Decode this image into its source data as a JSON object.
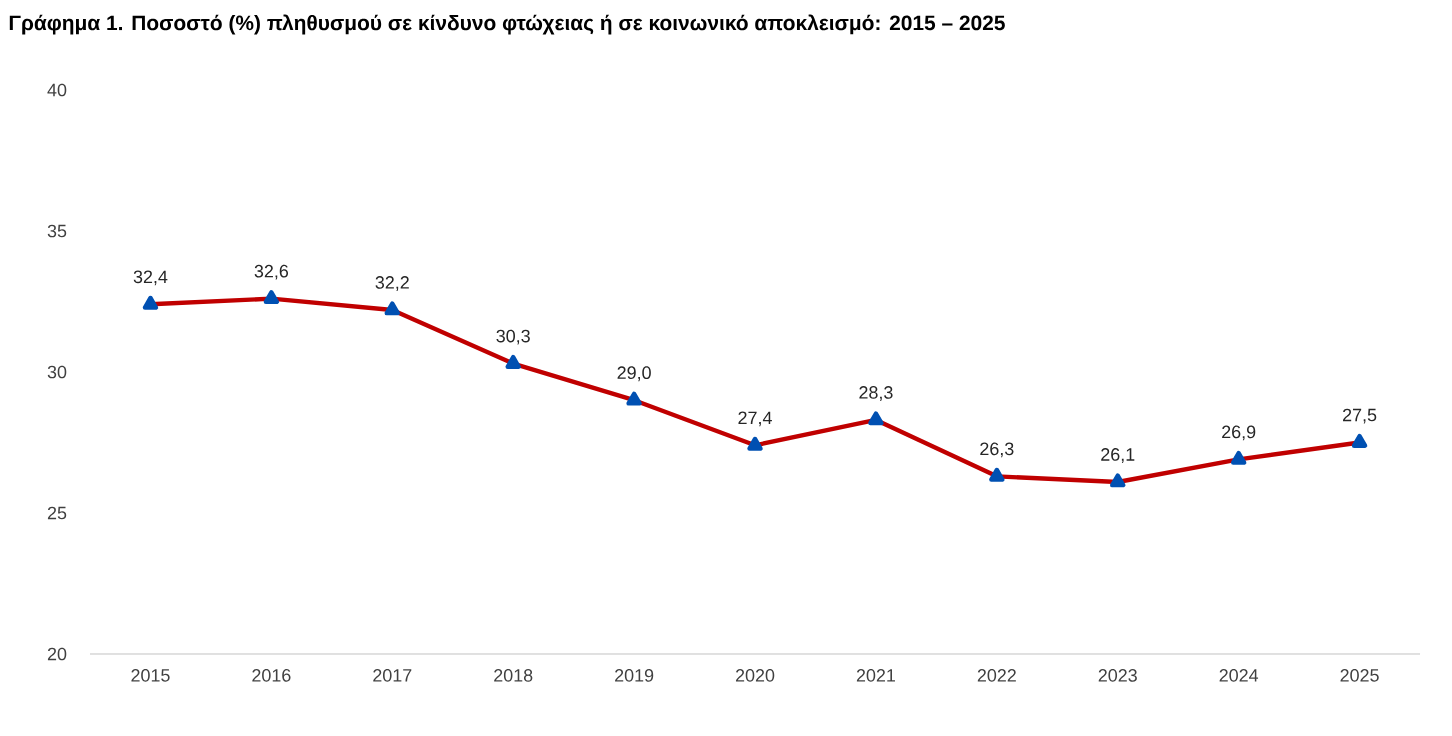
{
  "chart_data": {
    "type": "line",
    "title": "Γράφημα 1. Ποσοστό (%) πληθυσμού σε κίνδυνο φτώχειας ή σε κοινωνικό αποκλεισμό: 2015 – 2025",
    "categories": [
      "2015",
      "2016",
      "2017",
      "2018",
      "2019",
      "2020",
      "2021",
      "2022",
      "2023",
      "2024",
      "2025"
    ],
    "series": [
      {
        "color": "#c00000",
        "values": [
          32.4,
          32.6,
          32.2,
          30.3,
          29.0,
          27.4,
          28.3,
          26.3,
          26.1,
          26.9,
          27.5
        ],
        "value_labels": [
          "32,4",
          "32,6",
          "32,2",
          "30,3",
          "29,0",
          "27,4",
          "28,3",
          "26,3",
          "26,1",
          "26,9",
          "27,5"
        ]
      }
    ],
    "ylim": [
      20,
      40
    ],
    "yticks": [
      20,
      25,
      30,
      35,
      40
    ],
    "grid": false,
    "marker": "triangle",
    "line_style": "solid"
  }
}
